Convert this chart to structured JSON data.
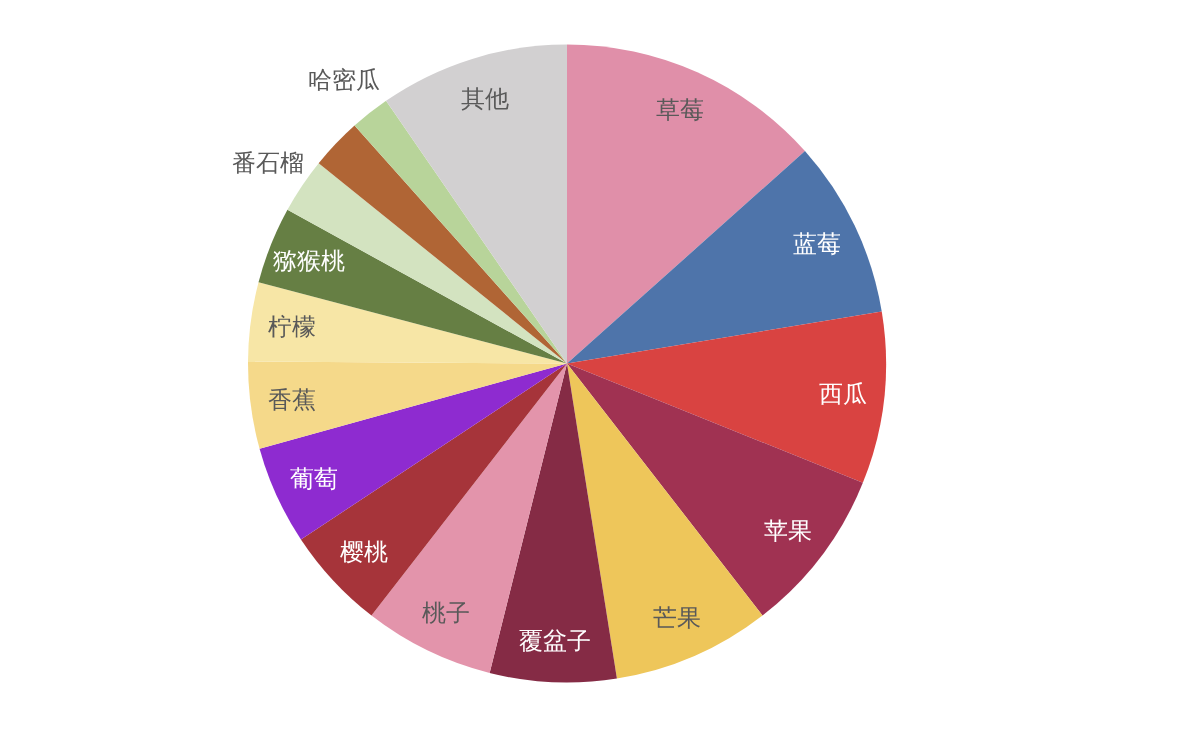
{
  "chart_data": {
    "type": "pie",
    "categories": [
      "草莓",
      "蓝莓",
      "西瓜",
      "苹果",
      "芒果",
      "覆盆子",
      "桃子",
      "樱桃",
      "葡萄",
      "香蕉",
      "柠檬",
      "猕猴桃",
      "番石榴",
      null,
      "哈密瓜",
      "其他"
    ],
    "values": [
      13.4,
      9.0,
      8.7,
      8.4,
      8.0,
      6.4,
      6.6,
      5.2,
      5.0,
      4.4,
      4.0,
      3.9,
      2.8,
      2.6,
      2.0,
      9.6
    ],
    "colors": [
      "#e08fa9",
      "#4e74aa",
      "#d94341",
      "#a03252",
      "#eec65a",
      "#852b45",
      "#e394ab",
      "#a6343a",
      "#8e2bd0",
      "#f5d98a",
      "#f7e6a6",
      "#667f44",
      "#d3e3c0",
      "#b06535",
      "#b8d49a",
      "#d2d0d1"
    ]
  }
}
